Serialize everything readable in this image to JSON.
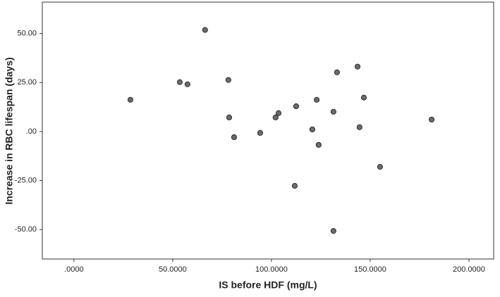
{
  "chart_data": {
    "type": "scatter",
    "x_label": "IS before HDF (mg/L)",
    "y_label": "Increase in RBC lifespan (days)",
    "x": [
      28.6,
      53.6,
      57.5,
      66.4,
      78.2,
      78.6,
      81.1,
      94.3,
      102.1,
      103.6,
      112.5,
      111.8,
      122.9,
      120.7,
      123.9,
      131.4,
      133.2,
      131.4,
      143.6,
      144.6,
      146.8,
      155,
      181.1
    ],
    "values": [
      16.2,
      25.2,
      24.1,
      51.8,
      26.3,
      7.2,
      -2.9,
      -0.7,
      7.2,
      9.4,
      12.9,
      -27.7,
      16.2,
      1.1,
      -6.8,
      10.1,
      30.2,
      -50.7,
      33.1,
      2.2,
      17.3,
      -18,
      6.1
    ],
    "color": "#6b6b6b",
    "xlim": [
      -16,
      212.5
    ],
    "ylim": [
      -65,
      66
    ],
    "xticks": [
      {
        "value": 0,
        "label": ".0000"
      },
      {
        "value": 50,
        "label": "50.0000"
      },
      {
        "value": 100,
        "label": "100.0000"
      },
      {
        "value": 150,
        "label": "150.0000"
      },
      {
        "value": 200,
        "label": "200.0000"
      }
    ],
    "yticks": [
      {
        "value": -50,
        "label": "-50.00"
      },
      {
        "value": -25,
        "label": "-25.00"
      },
      {
        "value": 0,
        "label": ".00"
      },
      {
        "value": 25,
        "label": "25.00"
      },
      {
        "value": 50,
        "label": "50.00"
      }
    ]
  }
}
